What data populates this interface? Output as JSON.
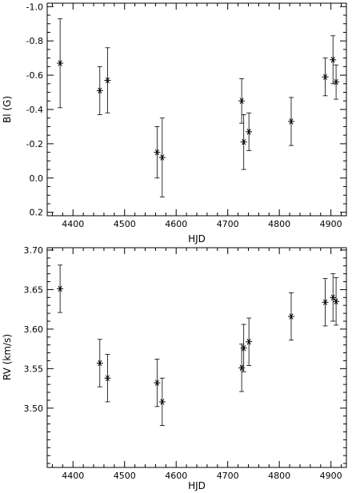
{
  "chart_data": [
    {
      "type": "scatter",
      "marker": "asterisk",
      "error_bars": true,
      "xlabel": "HJD",
      "ylabel": "Bl (G)",
      "xlim": [
        4350,
        4930
      ],
      "ylim": [
        0.22,
        -1.02
      ],
      "y_reversed": true,
      "x_ticks": [
        "4400",
        "4500",
        "4600",
        "4700",
        "4800",
        "4900"
      ],
      "y_ticks": [
        "-1.0",
        "-0.8",
        "-0.6",
        "-0.4",
        "-0.2",
        "0.0",
        "0.2"
      ],
      "grid": false,
      "points": [
        {
          "x": 4375,
          "y": -0.67,
          "err": 0.26
        },
        {
          "x": 4452,
          "y": -0.51,
          "err": 0.14
        },
        {
          "x": 4467,
          "y": -0.57,
          "err": 0.19
        },
        {
          "x": 4563,
          "y": -0.15,
          "err": 0.15
        },
        {
          "x": 4573,
          "y": -0.12,
          "err": 0.23
        },
        {
          "x": 4727,
          "y": -0.45,
          "err": 0.13
        },
        {
          "x": 4731,
          "y": -0.21,
          "err": 0.16
        },
        {
          "x": 4741,
          "y": -0.27,
          "err": 0.11
        },
        {
          "x": 4823,
          "y": -0.33,
          "err": 0.14
        },
        {
          "x": 4889,
          "y": -0.59,
          "err": 0.11
        },
        {
          "x": 4904,
          "y": -0.69,
          "err": 0.14
        },
        {
          "x": 4910,
          "y": -0.56,
          "err": 0.1
        }
      ]
    },
    {
      "type": "scatter",
      "marker": "asterisk",
      "error_bars": true,
      "xlabel": "HJD",
      "ylabel": "RV (km/s)",
      "xlim": [
        4350,
        4930
      ],
      "ylim": [
        3.425,
        3.703
      ],
      "y_reversed": false,
      "x_ticks": [
        "4400",
        "4500",
        "4600",
        "4700",
        "4800",
        "4900"
      ],
      "y_ticks": [
        "3.50",
        "3.55",
        "3.60",
        "3.65",
        "3.70"
      ],
      "grid": false,
      "points": [
        {
          "x": 4375,
          "y": 3.651,
          "err": 0.03
        },
        {
          "x": 4452,
          "y": 3.557,
          "err": 0.03
        },
        {
          "x": 4467,
          "y": 3.538,
          "err": 0.03
        },
        {
          "x": 4563,
          "y": 3.532,
          "err": 0.03
        },
        {
          "x": 4573,
          "y": 3.508,
          "err": 0.03
        },
        {
          "x": 4727,
          "y": 3.551,
          "err": 0.03
        },
        {
          "x": 4731,
          "y": 3.576,
          "err": 0.03
        },
        {
          "x": 4741,
          "y": 3.584,
          "err": 0.03
        },
        {
          "x": 4823,
          "y": 3.616,
          "err": 0.03
        },
        {
          "x": 4889,
          "y": 3.634,
          "err": 0.03
        },
        {
          "x": 4904,
          "y": 3.64,
          "err": 0.03
        },
        {
          "x": 4910,
          "y": 3.635,
          "err": 0.03
        }
      ]
    }
  ]
}
